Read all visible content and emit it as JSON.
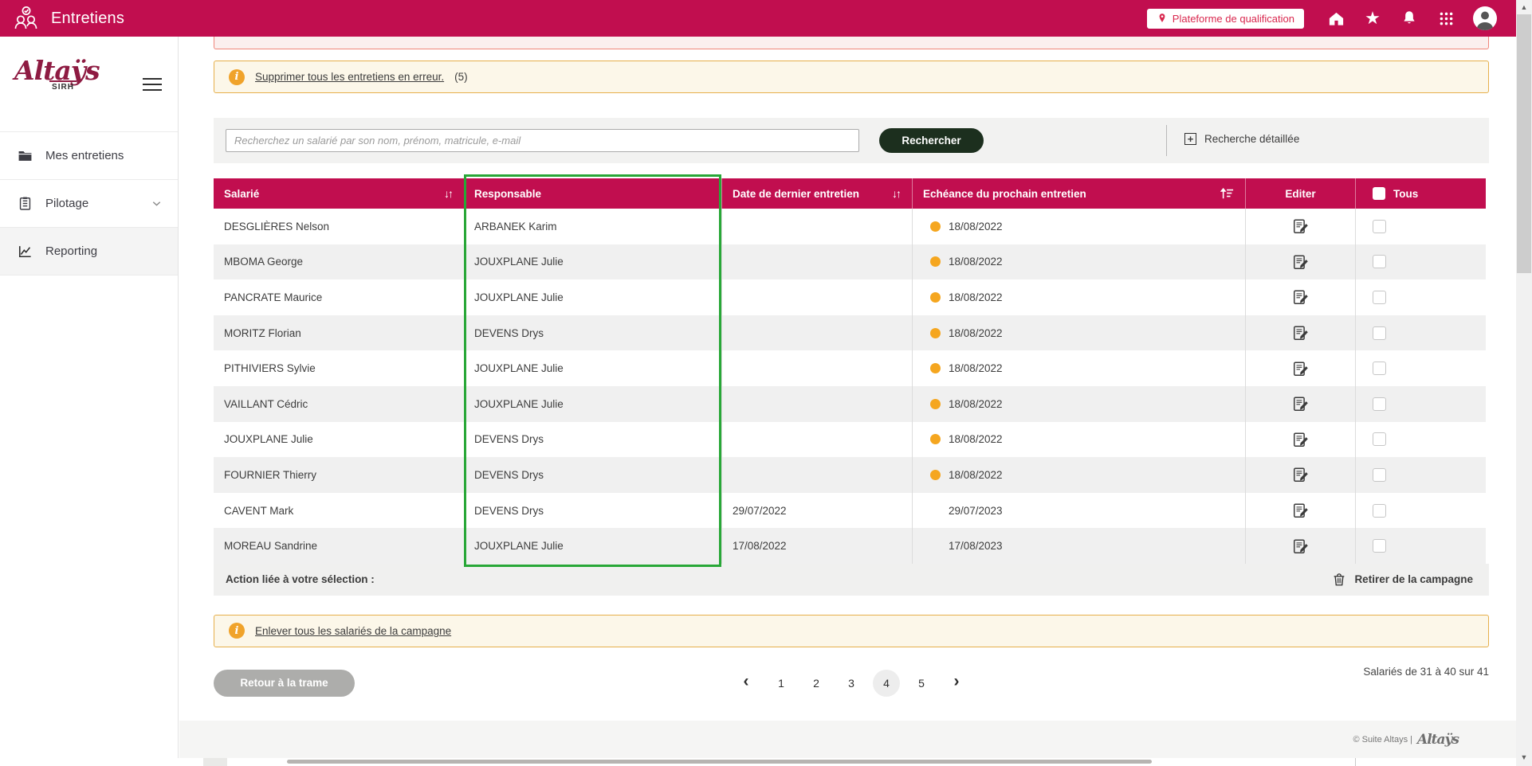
{
  "colors": {
    "primary": "#C10E4F",
    "highlight_green": "#28A737",
    "status_orange": "#F5A61F",
    "alert_border": "#E6AF4B",
    "alert_bg": "#FCF7E9",
    "dark_green_button": "#1C2F1E"
  },
  "topbar": {
    "title": "Entretiens",
    "badge": "Plateforme de qualification"
  },
  "sidebar": {
    "logo": "Altaÿs",
    "logo_sub": "SIRH",
    "items": [
      {
        "label": "Mes entretiens",
        "icon": "folder-icon",
        "active": false
      },
      {
        "label": "Pilotage",
        "icon": "clipboard-icon",
        "active": false,
        "chevron": true
      },
      {
        "label": "Reporting",
        "icon": "chart-line-icon",
        "active": true
      }
    ]
  },
  "alerts": {
    "delete_errors": {
      "link_text": "Supprimer tous les entretiens en erreur.",
      "count": "(5)"
    },
    "remove_all": {
      "link_text": "Enlever tous les salariés de la campagne"
    }
  },
  "search": {
    "placeholder": "Recherchez un salarié par son nom, prénom, matricule, e-mail",
    "button_label": "Rechercher",
    "detailed_label": "Recherche détaillée"
  },
  "table": {
    "columns": [
      {
        "label": "Salarié",
        "sort": "updown"
      },
      {
        "label": "Responsable",
        "sort": null
      },
      {
        "label": "Date de dernier entretien",
        "sort": "updown"
      },
      {
        "label": "Echéance du prochain entretien",
        "sort": "amount"
      },
      {
        "label": "Editer",
        "sort": null
      },
      {
        "label": "Tous",
        "sort": null,
        "checkbox": true
      }
    ],
    "rows": [
      {
        "salarie": "DESGLIÈRES Nelson",
        "responsable": "ARBANEK Karim",
        "date_dernier": "",
        "echeance": "18/08/2022",
        "dot": true
      },
      {
        "salarie": "MBOMA George",
        "responsable": "JOUXPLANE Julie",
        "date_dernier": "",
        "echeance": "18/08/2022",
        "dot": true
      },
      {
        "salarie": "PANCRATE Maurice",
        "responsable": "JOUXPLANE Julie",
        "date_dernier": "",
        "echeance": "18/08/2022",
        "dot": true
      },
      {
        "salarie": "MORITZ Florian",
        "responsable": "DEVENS Drys",
        "date_dernier": "",
        "echeance": "18/08/2022",
        "dot": true
      },
      {
        "salarie": "PITHIVIERS Sylvie",
        "responsable": "JOUXPLANE Julie",
        "date_dernier": "",
        "echeance": "18/08/2022",
        "dot": true
      },
      {
        "salarie": "VAILLANT Cédric",
        "responsable": "JOUXPLANE Julie",
        "date_dernier": "",
        "echeance": "18/08/2022",
        "dot": true
      },
      {
        "salarie": "JOUXPLANE Julie",
        "responsable": "DEVENS Drys",
        "date_dernier": "",
        "echeance": "18/08/2022",
        "dot": true
      },
      {
        "salarie": "FOURNIER Thierry",
        "responsable": "DEVENS Drys",
        "date_dernier": "",
        "echeance": "18/08/2022",
        "dot": true
      },
      {
        "salarie": "CAVENT Mark",
        "responsable": "DEVENS Drys",
        "date_dernier": "29/07/2022",
        "echeance": "29/07/2023",
        "dot": false
      },
      {
        "salarie": "MOREAU Sandrine",
        "responsable": "JOUXPLANE Julie",
        "date_dernier": "17/08/2022",
        "echeance": "17/08/2023",
        "dot": false
      }
    ]
  },
  "selection": {
    "label": "Action liée à votre sélection :",
    "action_label": "Retirer de la campagne"
  },
  "bottom": {
    "back_button": "Retour à la trame",
    "count_text": "Salariés de 31 à 40 sur 41"
  },
  "pagination": {
    "prev": "‹",
    "next": "›",
    "pages": [
      "1",
      "2",
      "3",
      "4",
      "5"
    ],
    "active_index": 3
  },
  "footer": {
    "copyright": "© Suite Altays |",
    "logo": "Altaÿs"
  }
}
